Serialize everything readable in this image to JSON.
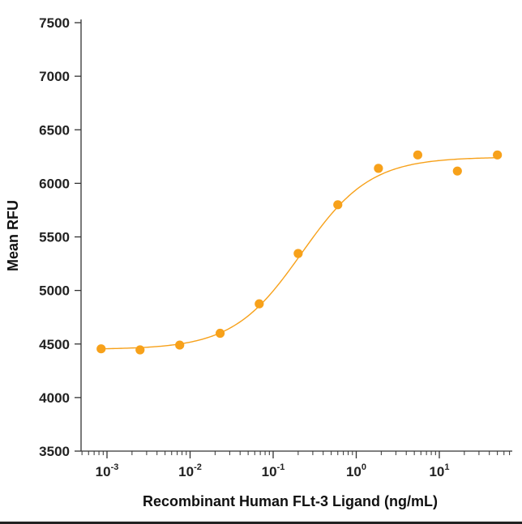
{
  "chart_data": {
    "type": "scatter",
    "xlabel": "Recombinant Human FLt-3 Ligand (ng/mL)",
    "ylabel": "Mean RFU",
    "x_scale": "log",
    "xlim": [
      0.0005,
      60
    ],
    "ylim": [
      3500,
      7500
    ],
    "yticks": [
      3500,
      4000,
      4500,
      5000,
      5500,
      6000,
      6500,
      7000,
      7500
    ],
    "xticks": [
      {
        "base": "10",
        "exp": "-3",
        "value": 0.001
      },
      {
        "base": "10",
        "exp": "-2",
        "value": 0.01
      },
      {
        "base": "10",
        "exp": "-1",
        "value": 0.1
      },
      {
        "base": "10",
        "exp": "0",
        "value": 1
      },
      {
        "base": "10",
        "exp": "1",
        "value": 10
      }
    ],
    "grid": false,
    "marker_color": "#F7A11A",
    "curve_color": "#F7A11A",
    "points": [
      {
        "x": 0.00085,
        "y": 4455
      },
      {
        "x": 0.0025,
        "y": 4445
      },
      {
        "x": 0.0075,
        "y": 4490
      },
      {
        "x": 0.023,
        "y": 4600
      },
      {
        "x": 0.068,
        "y": 4875
      },
      {
        "x": 0.2,
        "y": 5345
      },
      {
        "x": 0.6,
        "y": 5800
      },
      {
        "x": 1.85,
        "y": 6140
      },
      {
        "x": 5.5,
        "y": 6265
      },
      {
        "x": 16.5,
        "y": 6115
      },
      {
        "x": 50,
        "y": 6265
      }
    ],
    "fit": {
      "model": "4PL",
      "bottom": 4450,
      "top": 6245,
      "ec50": 0.22,
      "hill": 1.05
    }
  }
}
